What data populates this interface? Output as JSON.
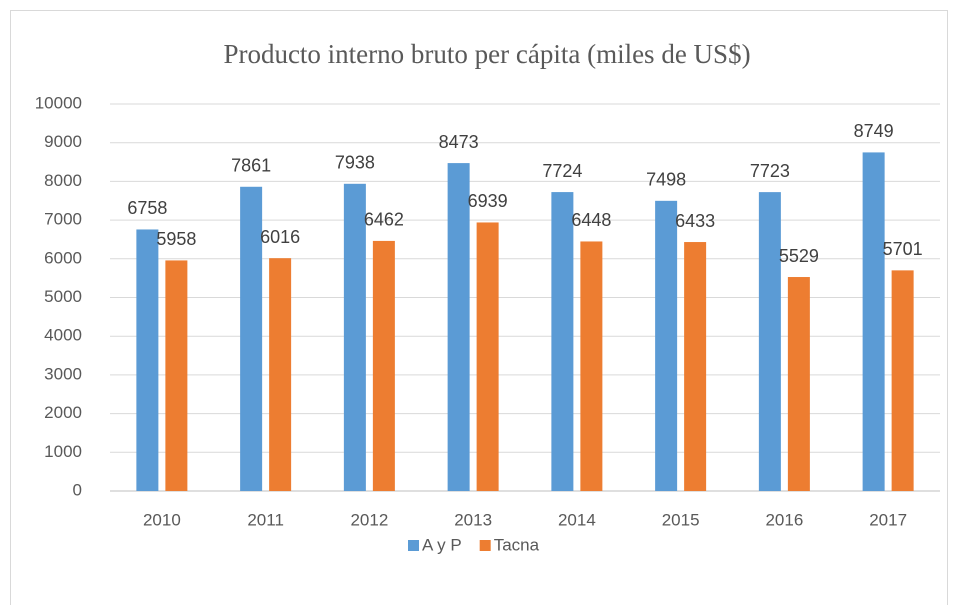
{
  "chart_data": {
    "type": "bar",
    "title": "Producto interno bruto per cápita (miles de US$)",
    "categories": [
      "2010",
      "2011",
      "2012",
      "2013",
      "2014",
      "2015",
      "2016",
      "2017"
    ],
    "series": [
      {
        "name": "A y P",
        "color": "#5b9bd5",
        "values": [
          6758,
          7861,
          7938,
          8473,
          7724,
          7498,
          7723,
          8749
        ]
      },
      {
        "name": "Tacna",
        "color": "#ed7d31",
        "values": [
          5958,
          6016,
          6462,
          6939,
          6448,
          6433,
          5529,
          5701
        ]
      }
    ],
    "ylim": [
      0,
      10000
    ],
    "yticks": [
      0,
      1000,
      2000,
      3000,
      4000,
      5000,
      6000,
      7000,
      8000,
      9000,
      10000
    ],
    "grid": true,
    "legend": "bottom"
  }
}
